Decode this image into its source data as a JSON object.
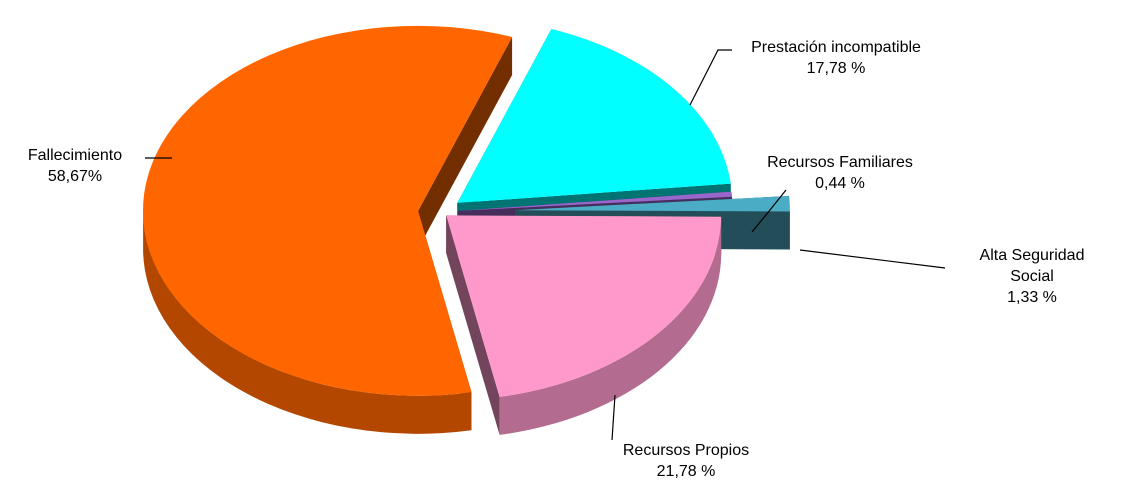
{
  "chart_data": {
    "type": "pie",
    "categories": [
      "Prestación incompatible",
      "Recursos Familiares",
      "Alta Seguridad Social",
      "Recursos Propios",
      "Fallecimiento"
    ],
    "values": [
      17.78,
      0.44,
      1.33,
      21.78,
      58.67
    ],
    "value_labels": [
      "17,78 %",
      "0,44 %",
      "1,33 %",
      "21,78 %",
      "58,67%"
    ],
    "colors": [
      "#00ffff",
      "#9966cc",
      "#4bacc6",
      "#ff99cc",
      "#ff6600"
    ]
  }
}
